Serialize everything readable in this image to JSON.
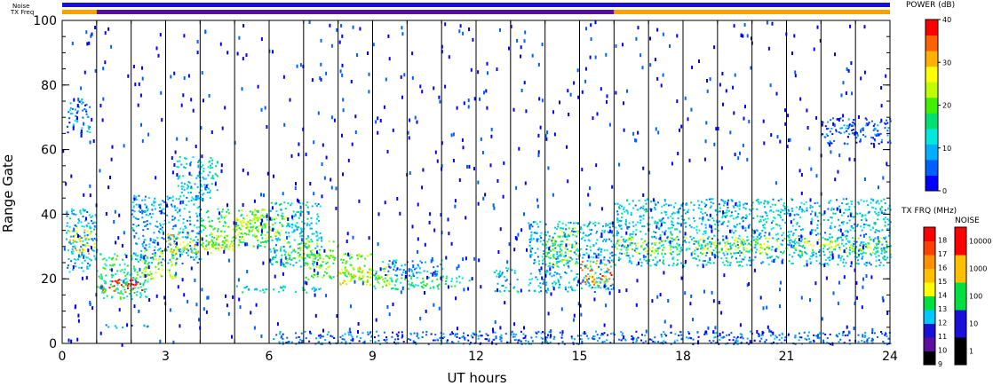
{
  "chart_data": {
    "type": "heatmap",
    "xlabel": "UT hours",
    "ylabel": "Range Gate",
    "xlim": [
      0,
      24
    ],
    "ylim": [
      0,
      100
    ],
    "x_ticks": [
      "0",
      "3",
      "6",
      "9",
      "12",
      "15",
      "18",
      "21",
      "24"
    ],
    "y_ticks": [
      "0",
      "20",
      "40",
      "60",
      "80",
      "100"
    ],
    "beam_boundaries_ut": [
      1.0,
      2.0,
      3.0,
      4.0,
      5.0,
      6.0,
      7.0,
      8.0,
      9.0,
      10.0,
      11.0,
      12.0,
      13.0,
      14.0,
      15.0,
      16.0,
      17.0,
      18.0,
      19.0,
      20.0,
      21.0,
      22.0,
      23.0
    ],
    "top_bars": {
      "noise_label": "Noise",
      "txfreq_label": "TX Freq",
      "noise_color": "#1a10d8",
      "txfreq_segments": [
        {
          "start": 0,
          "end": 1,
          "color": "#ff9f00"
        },
        {
          "start": 1,
          "end": 16,
          "color": "#5a0fa0"
        },
        {
          "start": 16,
          "end": 24,
          "color": "#ff9f00"
        }
      ]
    },
    "power_colorbar": {
      "title": "POWER (dB)",
      "min": 0,
      "max": 40,
      "ticks": [
        "0",
        "10",
        "20",
        "30",
        "40"
      ],
      "colors": [
        "#0000ff",
        "#0060ff",
        "#00b0ff",
        "#00e8e0",
        "#00e070",
        "#40f000",
        "#c0ff00",
        "#ffff00",
        "#ffb000",
        "#ff6000",
        "#ff0000"
      ]
    },
    "txfreq_colorbar": {
      "title": "TX FRQ (MHz)",
      "ticks": [
        "9",
        "10",
        "11",
        "12",
        "13",
        "14",
        "15",
        "16",
        "17",
        "18"
      ],
      "colors": [
        "#000000",
        "#5a0fa0",
        "#1a10d8",
        "#00c8ff",
        "#00e040",
        "#ffff00",
        "#ffc000",
        "#ff9000",
        "#ff4000",
        "#ff0000"
      ]
    },
    "noise_colorbar": {
      "title": "NOISE",
      "ticks": [
        "1",
        "10",
        "100",
        "1000",
        "10000"
      ],
      "colors": [
        "#000000",
        "#1a10d8",
        "#00e040",
        "#ffc000",
        "#ff0000"
      ]
    },
    "echo_regions": [
      {
        "t0": 0.1,
        "t1": 1.0,
        "g0": 28,
        "g1": 36,
        "power": 28
      },
      {
        "t0": 0.1,
        "t1": 1.0,
        "g0": 22,
        "g1": 42,
        "power": 10
      },
      {
        "t0": 0.1,
        "t1": 0.8,
        "g0": 65,
        "g1": 76,
        "power": 8
      },
      {
        "t0": 1.0,
        "t1": 2.3,
        "g0": 16,
        "g1": 20,
        "power": 38
      },
      {
        "t0": 1.0,
        "t1": 2.5,
        "g0": 14,
        "g1": 28,
        "power": 16
      },
      {
        "t0": 2.3,
        "t1": 3.3,
        "g0": 20,
        "g1": 30,
        "power": 22
      },
      {
        "t0": 2.0,
        "t1": 4.0,
        "g0": 25,
        "g1": 46,
        "power": 9
      },
      {
        "t0": 3.0,
        "t1": 5.0,
        "g0": 28,
        "g1": 34,
        "power": 26
      },
      {
        "t0": 3.3,
        "t1": 4.5,
        "g0": 45,
        "g1": 58,
        "power": 12
      },
      {
        "t0": 4.0,
        "t1": 6.0,
        "g0": 30,
        "g1": 42,
        "power": 18
      },
      {
        "t0": 5.0,
        "t1": 6.5,
        "g0": 32,
        "g1": 40,
        "power": 24
      },
      {
        "t0": 5.0,
        "t1": 7.5,
        "g0": 16,
        "g1": 18,
        "power": 12
      },
      {
        "t0": 6.0,
        "t1": 7.5,
        "g0": 24,
        "g1": 44,
        "power": 12
      },
      {
        "t0": 6.5,
        "t1": 8.0,
        "g0": 26,
        "g1": 32,
        "power": 22
      },
      {
        "t0": 7.0,
        "t1": 9.0,
        "g0": 20,
        "g1": 28,
        "power": 20
      },
      {
        "t0": 8.0,
        "t1": 9.5,
        "g0": 18,
        "g1": 24,
        "power": 26
      },
      {
        "t0": 9.0,
        "t1": 11.8,
        "g0": 17,
        "g1": 21,
        "power": 16
      },
      {
        "t0": 9.0,
        "t1": 11.0,
        "g0": 21,
        "g1": 26,
        "power": 8
      },
      {
        "t0": 12.5,
        "t1": 13.2,
        "g0": 16,
        "g1": 24,
        "power": 10
      },
      {
        "t0": 14.0,
        "t1": 15.0,
        "g0": 24,
        "g1": 36,
        "power": 22
      },
      {
        "t0": 15.0,
        "t1": 16.0,
        "g0": 18,
        "g1": 26,
        "power": 32
      },
      {
        "t0": 13.5,
        "t1": 16.0,
        "g0": 16,
        "g1": 38,
        "power": 10
      },
      {
        "t0": 16.0,
        "t1": 24.0,
        "g0": 28,
        "g1": 33,
        "power": 24
      },
      {
        "t0": 16.0,
        "t1": 24.0,
        "g0": 24,
        "g1": 45,
        "power": 11
      },
      {
        "t0": 22.0,
        "t1": 24.0,
        "g0": 62,
        "g1": 70,
        "power": 5
      },
      {
        "t0": 6.0,
        "t1": 24.0,
        "g0": 0,
        "g1": 4,
        "power": 6
      },
      {
        "t0": 1.2,
        "t1": 2.5,
        "g0": 5,
        "g1": 6,
        "power": 8
      }
    ]
  }
}
